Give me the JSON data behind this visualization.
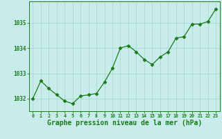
{
  "x": [
    0,
    1,
    2,
    3,
    4,
    5,
    6,
    7,
    8,
    9,
    10,
    11,
    12,
    13,
    14,
    15,
    16,
    17,
    18,
    19,
    20,
    21,
    22,
    23
  ],
  "y": [
    1032.0,
    1032.7,
    1032.4,
    1032.15,
    1031.9,
    1031.8,
    1032.1,
    1032.15,
    1032.2,
    1032.65,
    1033.2,
    1034.0,
    1034.1,
    1033.85,
    1033.55,
    1033.35,
    1033.65,
    1033.85,
    1034.4,
    1034.45,
    1034.95,
    1034.95,
    1035.05,
    1035.55
  ],
  "line_color": "#1a7a1a",
  "marker": "D",
  "marker_size": 2.5,
  "bg_color": "#c8ecea",
  "grid_color": "#a8d8d4",
  "xlabel": "Graphe pression niveau de la mer (hPa)",
  "xlabel_fontsize": 7.0,
  "xlabel_color": "#1a7a1a",
  "tick_color": "#1a7a1a",
  "ylim": [
    1031.5,
    1035.85
  ],
  "xlim": [
    -0.5,
    23.5
  ],
  "yticks": [
    1032,
    1033,
    1034,
    1035
  ]
}
